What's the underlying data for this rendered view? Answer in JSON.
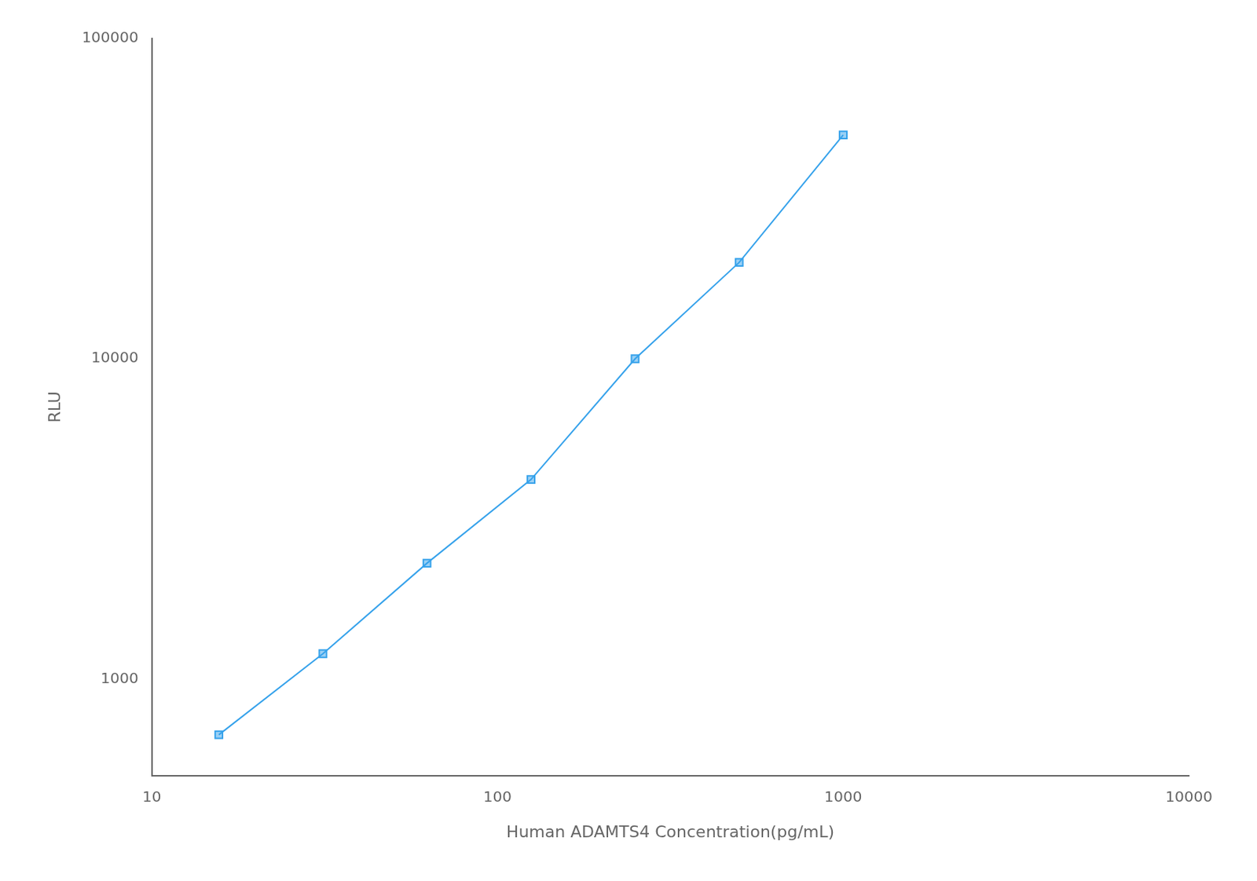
{
  "chart_data": {
    "type": "line",
    "xlabel": "Human ADAMTS4 Concentration(pg/mL)",
    "ylabel": "RLU",
    "x": [
      15.625,
      31.25,
      62.5,
      125,
      250,
      500,
      1000
    ],
    "values": [
      670,
      1200,
      2300,
      4200,
      10000,
      20000,
      50000
    ],
    "xlim": [
      10,
      10000
    ],
    "ylim": [
      500,
      100000
    ],
    "xticks": [
      10,
      100,
      1000,
      10000
    ],
    "yticks": [
      1000,
      10000,
      100000
    ],
    "log": true,
    "grid": false,
    "marker": "square",
    "line_style": "solid"
  }
}
